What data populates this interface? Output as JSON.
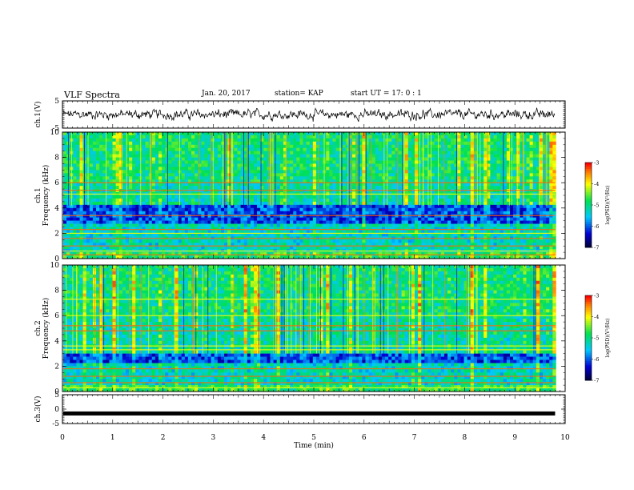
{
  "header": {
    "title": "VLF Spectra",
    "date": "Jan. 20, 2017",
    "station": "station= KAP",
    "start": "start  UT =   17: 0  : 1"
  },
  "chart_data": [
    {
      "type": "line",
      "panel": "ch1-waveform",
      "ylabel": "ch.1(V)",
      "ylim": [
        -5,
        5
      ],
      "yticks": [
        "5",
        "-5"
      ],
      "xlim": [
        0,
        10
      ],
      "x_end": 9.8,
      "description": "noisy waveform fluctuating around ~0 V with amplitude ~±1.5 V"
    },
    {
      "type": "heatmap",
      "panel": "ch1-spectrogram",
      "ylabel": "ch.1 Frequency (kHz)",
      "ylim": [
        0,
        10
      ],
      "yticks": [
        "0",
        "2",
        "4",
        "6",
        "8",
        "10"
      ],
      "xlim": [
        0,
        10
      ],
      "x_end": 9.8,
      "colorbar": {
        "label": "log(PSD)(V²/Hz)",
        "ticks": [
          "-3",
          "-4",
          "-5",
          "-6",
          "-7"
        ],
        "range": [
          -7,
          -3
        ]
      },
      "low_bands_khz": [
        2.8,
        4.2
      ],
      "horizontal_lines_khz": [
        0.3,
        0.6,
        1.0,
        1.6,
        2.0,
        2.3,
        3.4,
        5.1,
        5.4,
        6.0
      ]
    },
    {
      "type": "heatmap",
      "panel": "ch2-spectrogram",
      "ylabel": "ch.2 Frequency (kHz)",
      "ylim": [
        0,
        10
      ],
      "yticks": [
        "0",
        "2",
        "4",
        "6",
        "8",
        "10"
      ],
      "xlim": [
        0,
        10
      ],
      "x_end": 9.8,
      "colorbar": {
        "label": "log(PSD)(V²/Hz)",
        "ticks": [
          "-3",
          "-4",
          "-5",
          "-6",
          "-7"
        ],
        "range": [
          -7,
          -3
        ]
      },
      "low_bands_khz": [
        2.2,
        3.0
      ],
      "horizontal_lines_khz": [
        0.3,
        0.7,
        1.2,
        1.8,
        3.3,
        3.6,
        4.8,
        5.2,
        6.0,
        7.3
      ]
    },
    {
      "type": "line",
      "panel": "ch3-waveform",
      "ylabel": "ch.3(V)",
      "ylim": [
        -5,
        5
      ],
      "yticks": [
        "5",
        "0",
        "-5"
      ],
      "xlim": [
        0,
        10
      ],
      "x_end": 9.8,
      "constant_value": -1.5
    }
  ],
  "x_axis": {
    "label": "Time (min)",
    "ticks": [
      "0",
      "1",
      "2",
      "3",
      "4",
      "5",
      "6",
      "7",
      "8",
      "9",
      "10"
    ]
  },
  "colors": {
    "high": "#ff0000",
    "mid_high": "#ffff00",
    "mid": "#00e040",
    "mid_low": "#00c8ff",
    "low": "#0000cc",
    "lowest": "#000040"
  }
}
